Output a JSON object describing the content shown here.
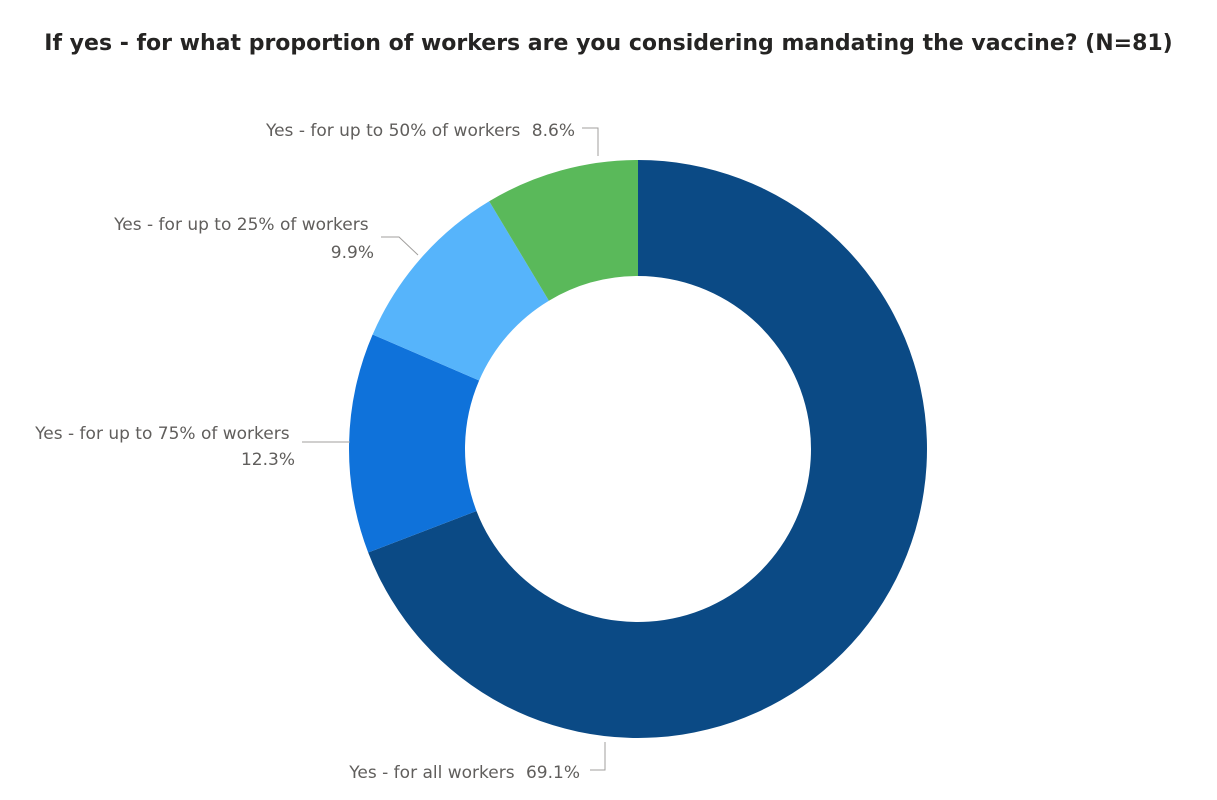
{
  "chart_data": {
    "type": "pie",
    "variant": "donut",
    "title": "If yes - for what proportion of workers are you considering mandating the vaccine? (N=81)",
    "slices": [
      {
        "label": "Yes - for all workers",
        "value": 69.1,
        "value_label": "69.1%",
        "color": "#0b4a85"
      },
      {
        "label": "Yes - for up to 75% of workers",
        "value": 12.3,
        "value_label": "12.3%",
        "color": "#0f72da"
      },
      {
        "label": "Yes - for up to 25% of workers",
        "value": 9.9,
        "value_label": "9.9%",
        "color": "#56b4fb"
      },
      {
        "label": "Yes - for up to 50% of workers",
        "value": 8.6,
        "value_label": "8.6%",
        "color": "#5ab95a"
      }
    ]
  }
}
